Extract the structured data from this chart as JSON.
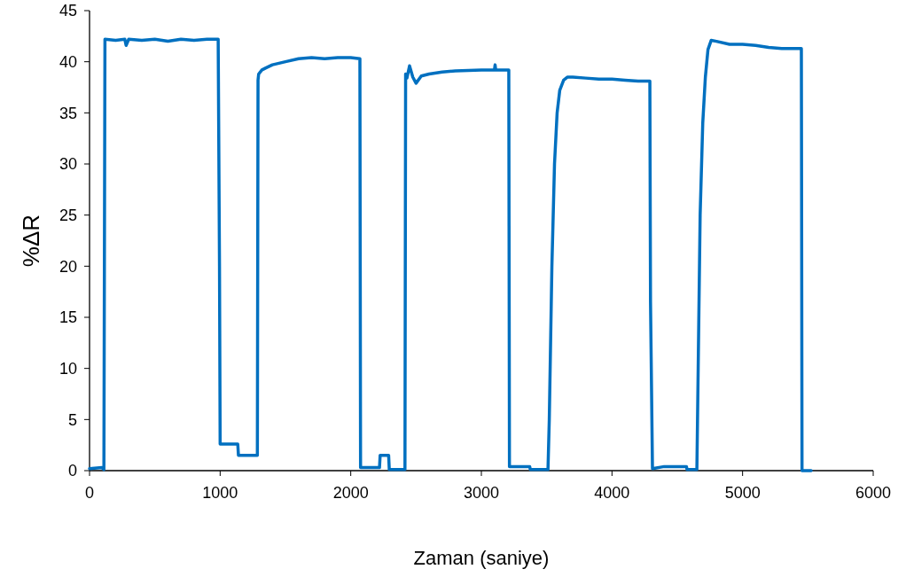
{
  "chart_data": {
    "type": "line",
    "xlabel": "Zaman (saniye)",
    "ylabel": "%ΔR",
    "xlim": [
      0,
      6000
    ],
    "ylim": [
      0,
      45
    ],
    "xticks": [
      0,
      1000,
      2000,
      3000,
      4000,
      5000,
      6000
    ],
    "yticks": [
      0,
      5,
      10,
      15,
      20,
      25,
      30,
      35,
      40,
      45
    ],
    "grid": false,
    "marker": "none",
    "line_style": "solid",
    "series": [
      {
        "color": "#0070c0",
        "x": [
          0,
          95,
          110,
          118,
          200,
          270,
          280,
          300,
          400,
          500,
          600,
          700,
          800,
          900,
          985,
          995,
          1000,
          1135,
          1140,
          1285,
          1290,
          1295,
          1320,
          1350,
          1400,
          1500,
          1600,
          1700,
          1800,
          1900,
          2000,
          2070,
          2075,
          2220,
          2225,
          2290,
          2295,
          2415,
          2420,
          2430,
          2450,
          2475,
          2500,
          2540,
          2600,
          2700,
          2800,
          3000,
          3100,
          3105,
          3110,
          3210,
          3215,
          3370,
          3375,
          3510,
          3520,
          3540,
          3560,
          3580,
          3600,
          3630,
          3660,
          3700,
          3800,
          3900,
          4000,
          4100,
          4200,
          4290,
          4295,
          4310,
          4400,
          4570,
          4575,
          4650,
          4660,
          4675,
          4695,
          4715,
          4735,
          4760,
          4800,
          4900,
          5000,
          5100,
          5200,
          5300,
          5450,
          5455,
          5525
        ],
        "values": [
          0.2,
          0.3,
          0.1,
          42.2,
          42.1,
          42.2,
          41.6,
          42.2,
          42.1,
          42.2,
          42.0,
          42.2,
          42.1,
          42.2,
          42.2,
          20,
          2.6,
          2.6,
          1.5,
          1.5,
          38.2,
          38.8,
          39.2,
          39.4,
          39.7,
          40.0,
          40.3,
          40.4,
          40.3,
          40.4,
          40.4,
          40.3,
          0.3,
          0.3,
          1.5,
          1.5,
          0.1,
          0.1,
          38.8,
          38.4,
          39.6,
          38.5,
          37.9,
          38.6,
          38.8,
          39.0,
          39.1,
          39.2,
          39.2,
          39.7,
          39.2,
          39.2,
          0.4,
          0.4,
          0.1,
          0.1,
          5,
          20,
          30,
          35,
          37.2,
          38.2,
          38.5,
          38.5,
          38.4,
          38.3,
          38.3,
          38.2,
          38.1,
          38.1,
          16.5,
          0.2,
          0.4,
          0.4,
          0.1,
          0.1,
          10,
          25,
          34,
          38.5,
          41.2,
          42.1,
          42.0,
          41.7,
          41.7,
          41.6,
          41.4,
          41.3,
          41.3,
          0,
          0
        ]
      }
    ]
  }
}
